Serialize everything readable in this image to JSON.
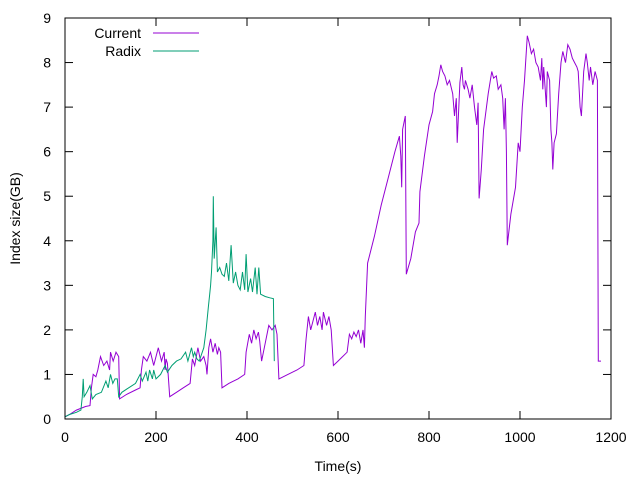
{
  "chart_data": {
    "type": "line",
    "title": "",
    "xlabel": "Time(s)",
    "ylabel": "Index size(GB)",
    "xlim": [
      0,
      1200
    ],
    "ylim": [
      0,
      9
    ],
    "xticks": [
      0,
      200,
      400,
      600,
      800,
      1000,
      1200
    ],
    "yticks": [
      0,
      1,
      2,
      3,
      4,
      5,
      6,
      7,
      8,
      9
    ],
    "grid": false,
    "legend_position": "top-left",
    "series": [
      {
        "name": "Current",
        "color": "#9400d3",
        "points": [
          [
            0,
            0.05
          ],
          [
            10,
            0.1
          ],
          [
            25,
            0.2
          ],
          [
            45,
            0.28
          ],
          [
            55,
            0.3
          ],
          [
            58,
            0.7
          ],
          [
            62,
            1.0
          ],
          [
            68,
            0.95
          ],
          [
            72,
            1.1
          ],
          [
            78,
            1.4
          ],
          [
            85,
            1.2
          ],
          [
            92,
            1.3
          ],
          [
            98,
            1.1
          ],
          [
            100,
            1.5
          ],
          [
            106,
            1.3
          ],
          [
            112,
            1.5
          ],
          [
            118,
            1.4
          ],
          [
            120,
            0.45
          ],
          [
            135,
            0.55
          ],
          [
            155,
            0.65
          ],
          [
            165,
            0.7
          ],
          [
            168,
            1.1
          ],
          [
            172,
            1.4
          ],
          [
            180,
            1.3
          ],
          [
            188,
            1.5
          ],
          [
            195,
            1.2
          ],
          [
            205,
            1.6
          ],
          [
            212,
            1.3
          ],
          [
            218,
            1.5
          ],
          [
            220,
            1.1
          ],
          [
            222,
            1.35
          ],
          [
            225,
            1.25
          ],
          [
            230,
            0.5
          ],
          [
            245,
            0.6
          ],
          [
            260,
            0.7
          ],
          [
            275,
            0.8
          ],
          [
            280,
            1.35
          ],
          [
            285,
            1.2
          ],
          [
            292,
            1.6
          ],
          [
            298,
            1.3
          ],
          [
            305,
            1.4
          ],
          [
            310,
            1.2
          ],
          [
            312,
            1.0
          ],
          [
            316,
            1.6
          ],
          [
            320,
            1.8
          ],
          [
            325,
            1.5
          ],
          [
            330,
            1.7
          ],
          [
            335,
            1.45
          ],
          [
            338,
            1.6
          ],
          [
            342,
            1.5
          ],
          [
            345,
            0.7
          ],
          [
            360,
            0.8
          ],
          [
            380,
            0.9
          ],
          [
            395,
            1.0
          ],
          [
            398,
            1.5
          ],
          [
            405,
            1.9
          ],
          [
            410,
            1.7
          ],
          [
            415,
            2.0
          ],
          [
            420,
            1.8
          ],
          [
            425,
            1.95
          ],
          [
            428,
            1.75
          ],
          [
            432,
            1.3
          ],
          [
            440,
            1.7
          ],
          [
            448,
            2.1
          ],
          [
            455,
            2.0
          ],
          [
            462,
            2.1
          ],
          [
            466,
            1.9
          ],
          [
            470,
            0.9
          ],
          [
            490,
            1.0
          ],
          [
            510,
            1.1
          ],
          [
            525,
            1.2
          ],
          [
            530,
            1.8
          ],
          [
            535,
            2.3
          ],
          [
            540,
            2.0
          ],
          [
            545,
            2.2
          ],
          [
            550,
            2.4
          ],
          [
            555,
            2.1
          ],
          [
            560,
            2.3
          ],
          [
            565,
            2.0
          ],
          [
            568,
            2.4
          ],
          [
            575,
            2.1
          ],
          [
            580,
            2.3
          ],
          [
            585,
            2.0
          ],
          [
            590,
            1.2
          ],
          [
            600,
            1.3
          ],
          [
            610,
            1.4
          ],
          [
            620,
            1.5
          ],
          [
            625,
            1.9
          ],
          [
            630,
            1.8
          ],
          [
            635,
            1.95
          ],
          [
            640,
            1.85
          ],
          [
            645,
            2.0
          ],
          [
            650,
            1.7
          ],
          [
            655,
            2.0
          ],
          [
            658,
            1.6
          ],
          [
            660,
            2.3
          ],
          [
            665,
            3.5
          ],
          [
            680,
            4.1
          ],
          [
            695,
            4.8
          ],
          [
            710,
            5.4
          ],
          [
            725,
            6.0
          ],
          [
            735,
            6.35
          ],
          [
            738,
            5.9
          ],
          [
            740,
            5.2
          ],
          [
            742,
            6.5
          ],
          [
            748,
            6.8
          ],
          [
            750,
            3.25
          ],
          [
            760,
            3.6
          ],
          [
            770,
            4.2
          ],
          [
            778,
            4.4
          ],
          [
            780,
            5.1
          ],
          [
            790,
            5.9
          ],
          [
            800,
            6.6
          ],
          [
            808,
            6.9
          ],
          [
            812,
            7.3
          ],
          [
            818,
            7.5
          ],
          [
            822,
            7.7
          ],
          [
            826,
            7.95
          ],
          [
            830,
            7.8
          ],
          [
            835,
            7.7
          ],
          [
            840,
            7.5
          ],
          [
            845,
            7.6
          ],
          [
            852,
            7.3
          ],
          [
            856,
            6.8
          ],
          [
            860,
            7.2
          ],
          [
            862,
            6.2
          ],
          [
            868,
            7.55
          ],
          [
            872,
            7.9
          ],
          [
            875,
            7.5
          ],
          [
            878,
            7.4
          ],
          [
            880,
            7.6
          ],
          [
            886,
            7.4
          ],
          [
            890,
            7.2
          ],
          [
            895,
            7.5
          ],
          [
            900,
            7.0
          ],
          [
            905,
            6.6
          ],
          [
            908,
            7.1
          ],
          [
            910,
            4.95
          ],
          [
            915,
            5.6
          ],
          [
            920,
            6.5
          ],
          [
            930,
            7.3
          ],
          [
            938,
            7.8
          ],
          [
            942,
            7.65
          ],
          [
            948,
            7.7
          ],
          [
            952,
            7.4
          ],
          [
            958,
            7.5
          ],
          [
            962,
            7.2
          ],
          [
            965,
            6.5
          ],
          [
            968,
            7.2
          ],
          [
            970,
            6.0
          ],
          [
            972,
            3.9
          ],
          [
            980,
            4.6
          ],
          [
            990,
            5.2
          ],
          [
            996,
            6.2
          ],
          [
            1000,
            6.0
          ],
          [
            1005,
            7.0
          ],
          [
            1010,
            7.6
          ],
          [
            1016,
            8.6
          ],
          [
            1020,
            8.45
          ],
          [
            1025,
            8.2
          ],
          [
            1030,
            8.3
          ],
          [
            1035,
            8.0
          ],
          [
            1040,
            7.9
          ],
          [
            1045,
            7.6
          ],
          [
            1048,
            8.1
          ],
          [
            1050,
            7.4
          ],
          [
            1052,
            7.9
          ],
          [
            1056,
            7.3
          ],
          [
            1058,
            7.0
          ],
          [
            1060,
            7.8
          ],
          [
            1065,
            7.6
          ],
          [
            1068,
            6.5
          ],
          [
            1070,
            6.2
          ],
          [
            1072,
            5.6
          ],
          [
            1075,
            6.2
          ],
          [
            1080,
            6.4
          ],
          [
            1085,
            7.3
          ],
          [
            1090,
            8.0
          ],
          [
            1094,
            8.25
          ],
          [
            1100,
            8.0
          ],
          [
            1105,
            8.4
          ],
          [
            1110,
            8.3
          ],
          [
            1115,
            8.1
          ],
          [
            1120,
            8.0
          ],
          [
            1125,
            7.9
          ],
          [
            1128,
            7.8
          ],
          [
            1132,
            7.0
          ],
          [
            1135,
            6.8
          ],
          [
            1140,
            7.8
          ],
          [
            1145,
            8.2
          ],
          [
            1148,
            8.0
          ],
          [
            1152,
            7.6
          ],
          [
            1155,
            7.9
          ],
          [
            1160,
            7.5
          ],
          [
            1165,
            7.8
          ],
          [
            1170,
            7.6
          ],
          [
            1172,
            1.3
          ],
          [
            1178,
            1.3
          ]
        ]
      },
      {
        "name": "Radix",
        "color": "#009e73",
        "points": [
          [
            0,
            0.05
          ],
          [
            10,
            0.1
          ],
          [
            25,
            0.15
          ],
          [
            35,
            0.2
          ],
          [
            38,
            0.5
          ],
          [
            40,
            0.9
          ],
          [
            42,
            0.5
          ],
          [
            48,
            0.6
          ],
          [
            55,
            0.75
          ],
          [
            60,
            0.45
          ],
          [
            68,
            0.55
          ],
          [
            80,
            0.6
          ],
          [
            90,
            0.85
          ],
          [
            95,
            0.7
          ],
          [
            100,
            1.0
          ],
          [
            105,
            0.8
          ],
          [
            110,
            0.9
          ],
          [
            115,
            0.9
          ],
          [
            118,
            0.5
          ],
          [
            125,
            0.6
          ],
          [
            140,
            0.7
          ],
          [
            155,
            0.8
          ],
          [
            165,
            1.0
          ],
          [
            170,
            0.85
          ],
          [
            178,
            1.05
          ],
          [
            182,
            0.85
          ],
          [
            186,
            1.1
          ],
          [
            192,
            0.9
          ],
          [
            195,
            1.1
          ],
          [
            200,
            0.9
          ],
          [
            210,
            1.0
          ],
          [
            220,
            1.2
          ],
          [
            225,
            1.05
          ],
          [
            235,
            1.2
          ],
          [
            245,
            1.3
          ],
          [
            255,
            1.35
          ],
          [
            265,
            1.5
          ],
          [
            270,
            1.3
          ],
          [
            278,
            1.6
          ],
          [
            282,
            1.4
          ],
          [
            285,
            1.5
          ],
          [
            290,
            1.35
          ],
          [
            295,
            1.3
          ],
          [
            305,
            1.6
          ],
          [
            310,
            2.0
          ],
          [
            315,
            2.5
          ],
          [
            318,
            2.8
          ],
          [
            320,
            3.0
          ],
          [
            322,
            3.3
          ],
          [
            325,
            4.0
          ],
          [
            326,
            5.0
          ],
          [
            328,
            3.6
          ],
          [
            332,
            4.3
          ],
          [
            335,
            3.3
          ],
          [
            340,
            3.4
          ],
          [
            345,
            3.25
          ],
          [
            350,
            3.2
          ],
          [
            355,
            3.5
          ],
          [
            360,
            3.1
          ],
          [
            365,
            3.9
          ],
          [
            370,
            3.05
          ],
          [
            375,
            3.3
          ],
          [
            380,
            3.0
          ],
          [
            385,
            2.9
          ],
          [
            390,
            3.3
          ],
          [
            395,
            2.9
          ],
          [
            398,
            3.7
          ],
          [
            402,
            2.85
          ],
          [
            408,
            3.15
          ],
          [
            412,
            2.85
          ],
          [
            418,
            3.4
          ],
          [
            422,
            2.8
          ],
          [
            426,
            3.4
          ],
          [
            430,
            2.8
          ],
          [
            440,
            2.75
          ],
          [
            450,
            2.72
          ],
          [
            458,
            2.7
          ],
          [
            460,
            1.3
          ]
        ]
      }
    ]
  }
}
